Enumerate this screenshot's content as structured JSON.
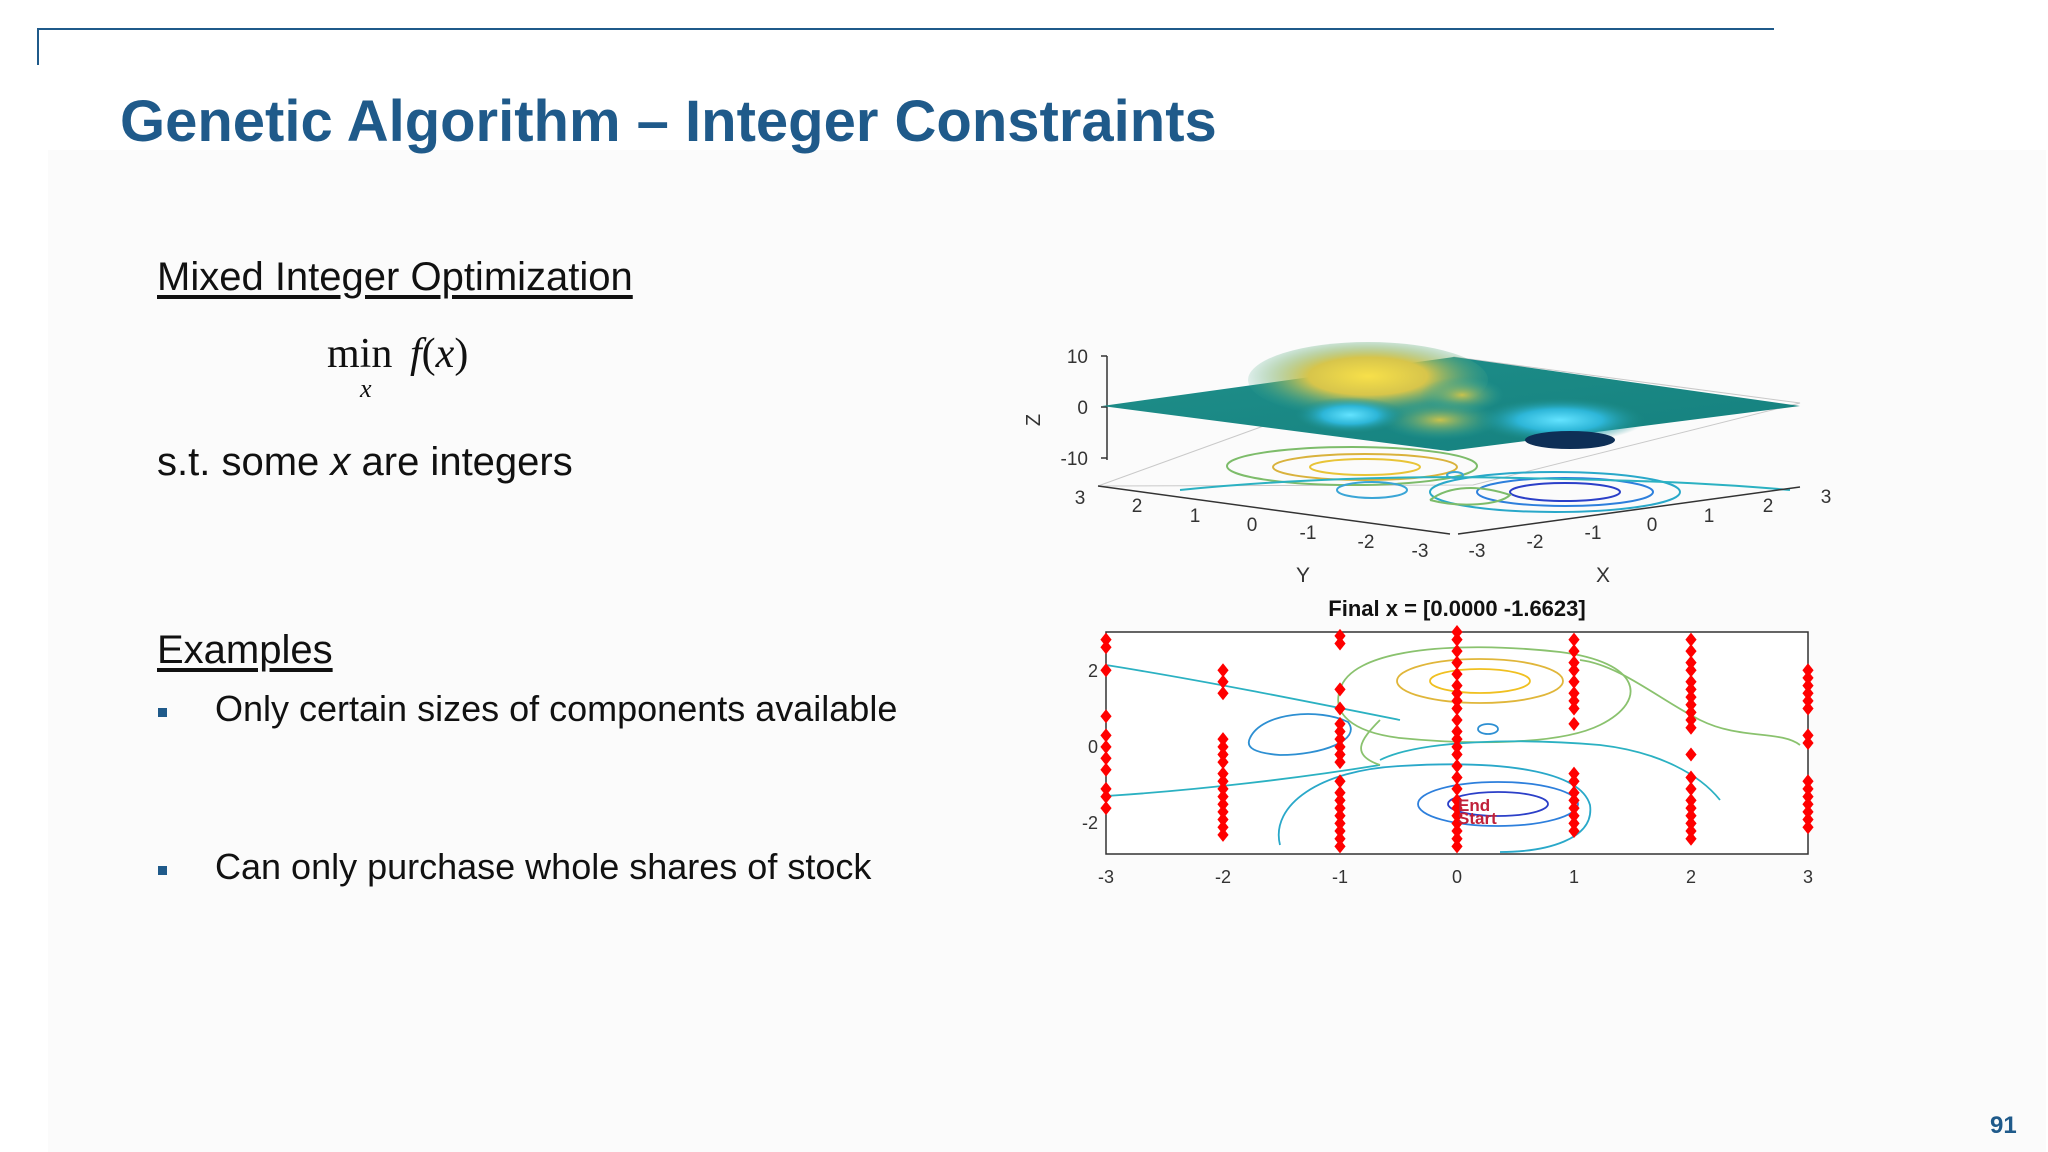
{
  "slide": {
    "title": "Genetic Algorithm – Integer Constraints",
    "page_number": "91"
  },
  "left_panel": {
    "heading_1": "Mixed Integer Optimization",
    "formula": {
      "operator": "min",
      "subscript": "x",
      "function": "f",
      "argument": "x"
    },
    "constraint": {
      "before": "s.t. some ",
      "var": "x",
      "after": " are integers"
    },
    "heading_2": "Examples",
    "bullets": [
      "Only certain sizes of components available",
      "Can only purchase whole shares of stock"
    ]
  },
  "surface_plot": {
    "z_label": "Z",
    "y_label": "Y",
    "x_label": "X",
    "z_ticks": [
      "10",
      "0",
      "-10"
    ],
    "y_ticks": [
      "3",
      "2",
      "1",
      "0",
      "-1",
      "-2",
      "-3"
    ],
    "x_ticks": [
      "-3",
      "-2",
      "-1",
      "0",
      "1",
      "2",
      "3"
    ]
  },
  "contour_plot": {
    "title": "Final x = [0.0000 -1.6623]",
    "x_ticks": [
      "-3",
      "-2",
      "-1",
      "0",
      "1",
      "2",
      "3"
    ],
    "y_ticks": [
      "2",
      "0",
      "-2"
    ],
    "end_label": "End",
    "start_label": "Start",
    "marker_color": "#ff0000",
    "final_point": [
      0.0,
      -1.6623
    ],
    "population_columns": [
      {
        "x": -3,
        "y": [
          2.7,
          2.5,
          1.9,
          0.7,
          0.2,
          -0.1,
          -0.4,
          -0.7,
          -1.2,
          -1.4,
          -1.7
        ]
      },
      {
        "x": -2,
        "y": [
          1.9,
          1.6,
          1.3,
          0.1,
          -0.1,
          -0.3,
          -0.5,
          -0.8,
          -1.0,
          -1.2,
          -1.4,
          -1.6,
          -1.8,
          -2.0,
          -2.2,
          -2.4
        ]
      },
      {
        "x": -1,
        "y": [
          2.8,
          2.6,
          1.4,
          0.9,
          0.5,
          0.3,
          0.1,
          -0.1,
          -0.3,
          -0.5,
          -1.0,
          -1.3,
          -1.5,
          -1.7,
          -1.9,
          -2.1,
          -2.3,
          -2.5,
          -2.7
        ]
      },
      {
        "x": 0,
        "y": [
          2.9,
          2.7,
          2.4,
          2.1,
          1.8,
          1.5,
          1.3,
          1.1,
          0.9,
          0.6,
          0.3,
          0.1,
          -0.1,
          -0.3,
          -0.6,
          -0.9,
          -1.2,
          -1.5,
          -1.7,
          -1.9,
          -2.1,
          -2.3,
          -2.5,
          -2.7
        ]
      },
      {
        "x": 1,
        "y": [
          2.7,
          2.4,
          2.1,
          1.9,
          1.6,
          1.3,
          1.1,
          0.9,
          0.5,
          -0.8,
          -1.0,
          -1.3,
          -1.5,
          -1.7,
          -1.9,
          -2.1,
          -2.3
        ]
      },
      {
        "x": 2,
        "y": [
          2.7,
          2.4,
          2.1,
          1.9,
          1.6,
          1.4,
          1.2,
          1.0,
          0.8,
          0.6,
          0.4,
          -0.3,
          -0.9,
          -1.2,
          -1.5,
          -1.7,
          -1.9,
          -2.1,
          -2.3,
          -2.5
        ]
      },
      {
        "x": 3,
        "y": [
          1.9,
          1.7,
          1.5,
          1.3,
          1.1,
          0.9,
          0.2,
          0.0,
          -1.0,
          -1.2,
          -1.4,
          -1.6,
          -1.8,
          -2.0,
          -2.2
        ]
      }
    ]
  }
}
